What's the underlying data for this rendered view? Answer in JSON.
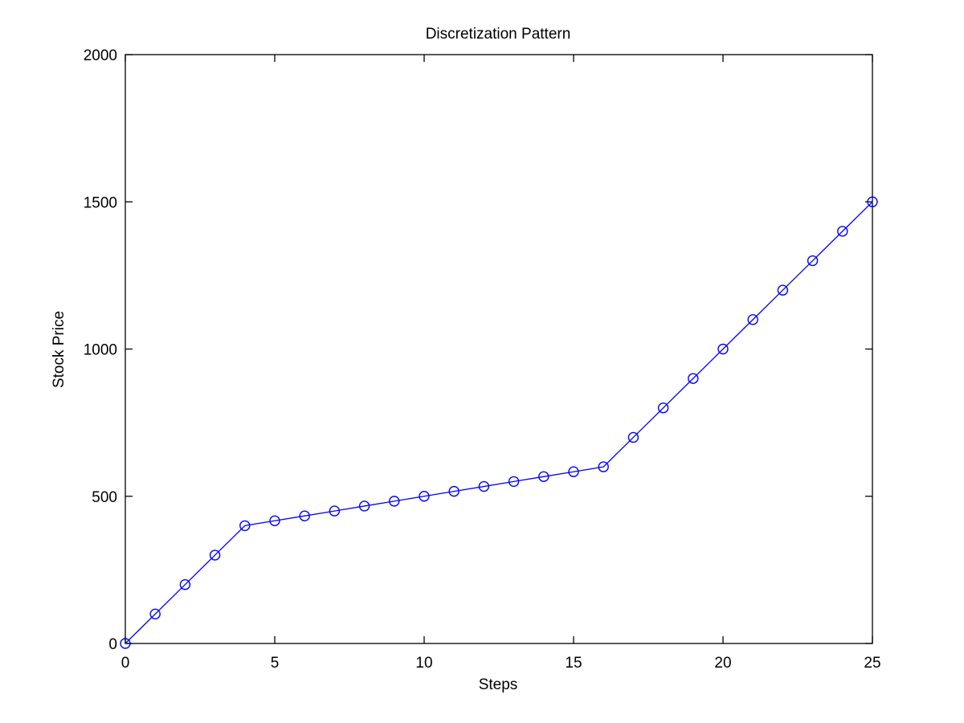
{
  "chart_data": {
    "type": "line",
    "title": "Discretization Pattern",
    "xlabel": "Steps",
    "ylabel": "Stock Price",
    "xlim": [
      0,
      25
    ],
    "ylim": [
      0,
      2000
    ],
    "x_ticks": [
      0,
      5,
      10,
      15,
      20,
      25
    ],
    "y_ticks": [
      0,
      500,
      1000,
      1500,
      2000
    ],
    "grid": false,
    "legend": "none",
    "series": [
      {
        "color": "#0000ff",
        "marker": "circle",
        "x": [
          0,
          1,
          2,
          3,
          4,
          5,
          6,
          7,
          8,
          9,
          10,
          11,
          12,
          13,
          14,
          15,
          16,
          17,
          18,
          19,
          20,
          21,
          22,
          23,
          24,
          25
        ],
        "y": [
          0,
          100,
          200,
          300,
          400,
          416.7,
          433.3,
          450,
          466.7,
          483.3,
          500,
          516.7,
          533.3,
          550,
          566.7,
          583.3,
          600,
          700,
          800,
          900,
          1000,
          1100,
          1200,
          1300,
          1400,
          1500
        ]
      }
    ]
  }
}
